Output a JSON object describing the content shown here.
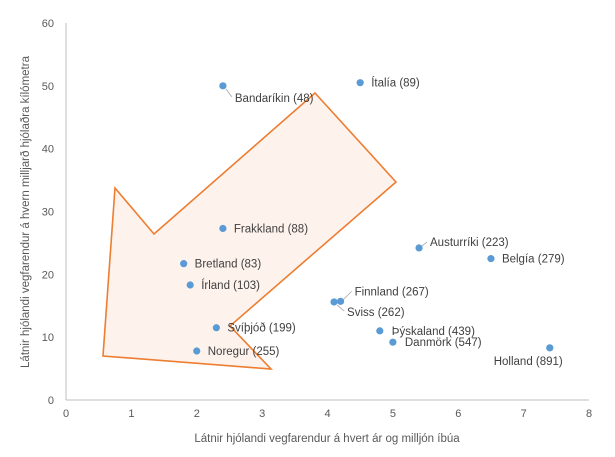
{
  "chart_data": {
    "type": "scatter",
    "title": "",
    "xlabel": "Látnir hjólandi vegfarendur á hvert ár og milljón íbúa",
    "ylabel": "Látnir hjólandi vegfarendur á hvern milljarð hjólaðra kílómetra",
    "xlim": [
      0,
      8
    ],
    "ylim": [
      0,
      60
    ],
    "x_ticks": [
      "0",
      "1",
      "2",
      "3",
      "4",
      "5",
      "6",
      "7",
      "8"
    ],
    "y_ticks": [
      "0",
      "10",
      "20",
      "30",
      "40",
      "50",
      "60"
    ],
    "grid": false,
    "legend": "none",
    "marker_color": "#5b9bd5",
    "points": [
      {
        "label": "Bandaríkin (48)",
        "x": 2.4,
        "y": 50.0
      },
      {
        "label": "Ítalía (89)",
        "x": 4.5,
        "y": 50.5
      },
      {
        "label": "Frakkland (88)",
        "x": 2.4,
        "y": 27.3
      },
      {
        "label": "Austurríki (223)",
        "x": 5.4,
        "y": 24.2
      },
      {
        "label": "Belgía (279)",
        "x": 6.5,
        "y": 22.5
      },
      {
        "label": "Bretland (83)",
        "x": 1.8,
        "y": 21.7
      },
      {
        "label": "Írland (103)",
        "x": 1.9,
        "y": 18.3
      },
      {
        "label": "Finnland (267)",
        "x": 4.2,
        "y": 15.7
      },
      {
        "label": "Sviss (262)",
        "x": 4.1,
        "y": 15.6
      },
      {
        "label": "Svíþjóð (199)",
        "x": 2.3,
        "y": 11.5
      },
      {
        "label": "Þýskaland (439)",
        "x": 4.8,
        "y": 11.0
      },
      {
        "label": "Danmörk (547)",
        "x": 5.0,
        "y": 9.2
      },
      {
        "label": "Noregur (255)",
        "x": 2.0,
        "y": 7.8
      },
      {
        "label": "Holland (891)",
        "x": 7.4,
        "y": 8.3
      }
    ],
    "annotations": [
      {
        "type": "arrow",
        "fill": "#fdf2ec",
        "stroke": "#ed7d31",
        "direction": "down-left"
      }
    ]
  }
}
